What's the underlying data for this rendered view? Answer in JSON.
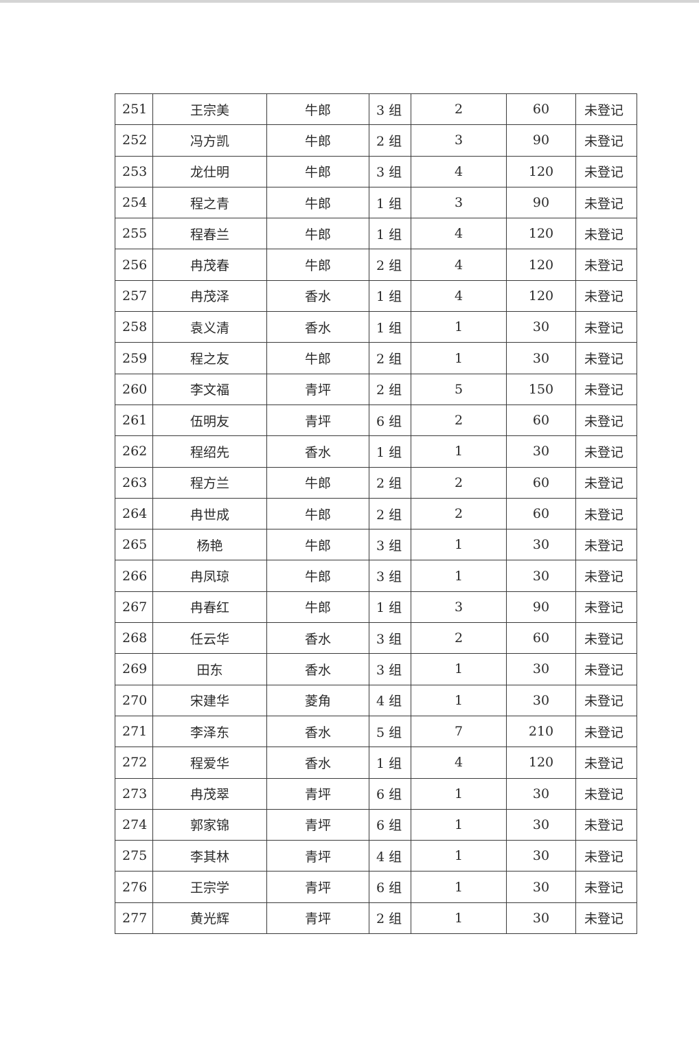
{
  "table": {
    "rows": [
      {
        "no": "251",
        "name": "王宗美",
        "village": "牛郎",
        "group": "3 组",
        "count": "2",
        "amount": "60",
        "status": "未登记"
      },
      {
        "no": "252",
        "name": "冯方凯",
        "village": "牛郎",
        "group": "2 组",
        "count": "3",
        "amount": "90",
        "status": "未登记"
      },
      {
        "no": "253",
        "name": "龙仕明",
        "village": "牛郎",
        "group": "3 组",
        "count": "4",
        "amount": "120",
        "status": "未登记"
      },
      {
        "no": "254",
        "name": "程之青",
        "village": "牛郎",
        "group": "1 组",
        "count": "3",
        "amount": "90",
        "status": "未登记"
      },
      {
        "no": "255",
        "name": "程春兰",
        "village": "牛郎",
        "group": "1 组",
        "count": "4",
        "amount": "120",
        "status": "未登记"
      },
      {
        "no": "256",
        "name": "冉茂春",
        "village": "牛郎",
        "group": "2 组",
        "count": "4",
        "amount": "120",
        "status": "未登记"
      },
      {
        "no": "257",
        "name": "冉茂泽",
        "village": "香水",
        "group": "1 组",
        "count": "4",
        "amount": "120",
        "status": "未登记"
      },
      {
        "no": "258",
        "name": "袁义清",
        "village": "香水",
        "group": "1 组",
        "count": "1",
        "amount": "30",
        "status": "未登记"
      },
      {
        "no": "259",
        "name": "程之友",
        "village": "牛郎",
        "group": "2 组",
        "count": "1",
        "amount": "30",
        "status": "未登记"
      },
      {
        "no": "260",
        "name": "李文福",
        "village": "青坪",
        "group": "2 组",
        "count": "5",
        "amount": "150",
        "status": "未登记"
      },
      {
        "no": "261",
        "name": "伍明友",
        "village": "青坪",
        "group": "6 组",
        "count": "2",
        "amount": "60",
        "status": "未登记"
      },
      {
        "no": "262",
        "name": "程绍先",
        "village": "香水",
        "group": "1 组",
        "count": "1",
        "amount": "30",
        "status": "未登记"
      },
      {
        "no": "263",
        "name": "程方兰",
        "village": "牛郎",
        "group": "2 组",
        "count": "2",
        "amount": "60",
        "status": "未登记"
      },
      {
        "no": "264",
        "name": "冉世成",
        "village": "牛郎",
        "group": "2 组",
        "count": "2",
        "amount": "60",
        "status": "未登记"
      },
      {
        "no": "265",
        "name": "杨艳",
        "village": "牛郎",
        "group": "3 组",
        "count": "1",
        "amount": "30",
        "status": "未登记"
      },
      {
        "no": "266",
        "name": "冉凤琼",
        "village": "牛郎",
        "group": "3 组",
        "count": "1",
        "amount": "30",
        "status": "未登记"
      },
      {
        "no": "267",
        "name": "冉春红",
        "village": "牛郎",
        "group": "1 组",
        "count": "3",
        "amount": "90",
        "status": "未登记"
      },
      {
        "no": "268",
        "name": "任云华",
        "village": "香水",
        "group": "3 组",
        "count": "2",
        "amount": "60",
        "status": "未登记"
      },
      {
        "no": "269",
        "name": "田东",
        "village": "香水",
        "group": "3 组",
        "count": "1",
        "amount": "30",
        "status": "未登记"
      },
      {
        "no": "270",
        "name": "宋建华",
        "village": "菱角",
        "group": "4 组",
        "count": "1",
        "amount": "30",
        "status": "未登记"
      },
      {
        "no": "271",
        "name": "李泽东",
        "village": "香水",
        "group": "5 组",
        "count": "7",
        "amount": "210",
        "status": "未登记"
      },
      {
        "no": "272",
        "name": "程爱华",
        "village": "香水",
        "group": "1 组",
        "count": "4",
        "amount": "120",
        "status": "未登记"
      },
      {
        "no": "273",
        "name": "冉茂翠",
        "village": "青坪",
        "group": "6 组",
        "count": "1",
        "amount": "30",
        "status": "未登记"
      },
      {
        "no": "274",
        "name": "郭家锦",
        "village": "青坪",
        "group": "6 组",
        "count": "1",
        "amount": "30",
        "status": "未登记"
      },
      {
        "no": "275",
        "name": "李其林",
        "village": "青坪",
        "group": "4 组",
        "count": "1",
        "amount": "30",
        "status": "未登记"
      },
      {
        "no": "276",
        "name": "王宗学",
        "village": "青坪",
        "group": "6 组",
        "count": "1",
        "amount": "30",
        "status": "未登记"
      },
      {
        "no": "277",
        "name": "黄光辉",
        "village": "青坪",
        "group": "2 组",
        "count": "1",
        "amount": "30",
        "status": "未登记"
      }
    ]
  }
}
